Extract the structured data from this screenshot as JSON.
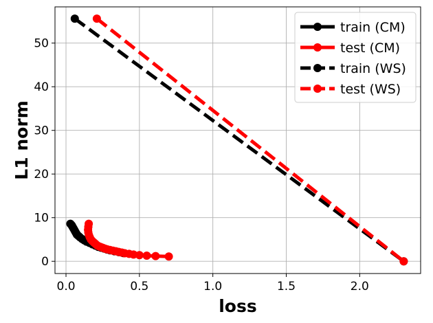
{
  "chart_data": {
    "type": "line",
    "title": "",
    "xlabel": "loss",
    "ylabel": "L1 norm",
    "xlim": [
      -0.075,
      2.415
    ],
    "ylim": [
      -2.8,
      58.3
    ],
    "xticks": [
      0.0,
      0.5,
      1.0,
      1.5,
      2.0
    ],
    "xtick_labels": [
      "0.0",
      "0.5",
      "1.0",
      "1.5",
      "2.0"
    ],
    "yticks": [
      0,
      10,
      20,
      30,
      40,
      50
    ],
    "ytick_labels": [
      "0",
      "10",
      "20",
      "30",
      "40",
      "50"
    ],
    "grid": true,
    "legend_position": "top-right",
    "series": [
      {
        "name": "train (CM)",
        "color": "#000000",
        "linestyle": "solid",
        "marker": "circle",
        "x": [
          0.03,
          0.035,
          0.04,
          0.045,
          0.05,
          0.055,
          0.06,
          0.065,
          0.07,
          0.075,
          0.085,
          0.095,
          0.11,
          0.125,
          0.14,
          0.16,
          0.18,
          0.2,
          0.22,
          0.24,
          0.26,
          0.28,
          0.3,
          0.33,
          0.36,
          0.39
        ],
        "y": [
          8.6,
          8.4,
          8.2,
          7.9,
          7.6,
          7.3,
          7.0,
          6.7,
          6.4,
          6.1,
          5.8,
          5.5,
          5.1,
          4.8,
          4.5,
          4.2,
          3.9,
          3.6,
          3.3,
          3.1,
          2.9,
          2.7,
          2.5,
          2.3,
          2.1,
          1.9
        ]
      },
      {
        "name": "test (CM)",
        "color": "#ff0000",
        "linestyle": "solid",
        "marker": "circle",
        "x": [
          0.155,
          0.152,
          0.15,
          0.152,
          0.156,
          0.162,
          0.17,
          0.18,
          0.19,
          0.2,
          0.21,
          0.22,
          0.235,
          0.25,
          0.265,
          0.28,
          0.3,
          0.32,
          0.34,
          0.36,
          0.38,
          0.4,
          0.43,
          0.46,
          0.5,
          0.55,
          0.61,
          0.7
        ],
        "y": [
          8.6,
          7.9,
          7.2,
          6.6,
          6.0,
          5.5,
          5.0,
          4.6,
          4.3,
          4.0,
          3.7,
          3.5,
          3.3,
          3.1,
          2.9,
          2.75,
          2.6,
          2.45,
          2.3,
          2.15,
          2.0,
          1.85,
          1.7,
          1.55,
          1.4,
          1.3,
          1.2,
          1.1
        ]
      },
      {
        "name": "train (WS)",
        "color": "#000000",
        "linestyle": "dashed",
        "marker": "circle",
        "x": [
          0.06,
          2.3
        ],
        "y": [
          55.6,
          0.0
        ]
      },
      {
        "name": "test (WS)",
        "color": "#ff0000",
        "linestyle": "dashed",
        "marker": "circle",
        "x": [
          0.21,
          2.3
        ],
        "y": [
          55.6,
          0.0
        ]
      }
    ]
  }
}
